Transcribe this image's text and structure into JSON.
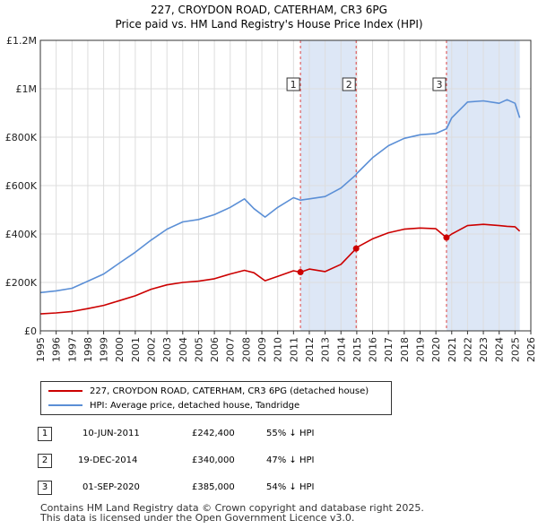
{
  "title": "227, CROYDON ROAD, CATERHAM, CR3 6PG",
  "subtitle": "Price paid vs. HM Land Registry's House Price Index (HPI)",
  "colors": {
    "price_paid": "#cc0000",
    "hpi": "#5b8fd6",
    "shade": "#dde7f6",
    "grid": "#dddddd"
  },
  "chart_data": {
    "type": "line",
    "title": "227, CROYDON ROAD, CATERHAM, CR3 6PG",
    "subtitle": "Price paid vs. HM Land Registry's House Price Index (HPI)",
    "xlim": [
      1995,
      2026
    ],
    "ylim": [
      0,
      1200000
    ],
    "x_ticks": [
      "1995",
      "1996",
      "1997",
      "1998",
      "1999",
      "2000",
      "2001",
      "2002",
      "2003",
      "2004",
      "2005",
      "2006",
      "2007",
      "2008",
      "2009",
      "2010",
      "2011",
      "2012",
      "2013",
      "2014",
      "2015",
      "2016",
      "2017",
      "2018",
      "2019",
      "2020",
      "2021",
      "2022",
      "2023",
      "2024",
      "2025",
      "2026"
    ],
    "y_ticks": [
      {
        "value": 0,
        "label": "£0"
      },
      {
        "value": 200000,
        "label": "£200K"
      },
      {
        "value": 400000,
        "label": "£400K"
      },
      {
        "value": 600000,
        "label": "£600K"
      },
      {
        "value": 800000,
        "label": "£800K"
      },
      {
        "value": 1000000,
        "label": "£1M"
      },
      {
        "value": 1200000,
        "label": "£1.2M"
      }
    ],
    "grid": true,
    "legend_position": "bottom",
    "series": [
      {
        "name": "227, CROYDON ROAD, CATERHAM, CR3 6PG (detached house)",
        "color": "#cc0000",
        "x": [
          1995.0,
          1996.0,
          1997.0,
          1998.0,
          1999.0,
          2000.0,
          2001.0,
          2002.0,
          2003.0,
          2004.0,
          2005.0,
          2006.0,
          2007.0,
          2007.9,
          2008.5,
          2009.2,
          2010.0,
          2011.0,
          2011.44,
          2012.0,
          2013.0,
          2014.0,
          2014.96,
          2015.0,
          2016.0,
          2017.0,
          2018.0,
          2019.0,
          2020.0,
          2020.67,
          2021.0,
          2022.0,
          2023.0,
          2024.0,
          2024.5,
          2025.0,
          2025.3
        ],
        "y": [
          70000,
          74000,
          80000,
          92000,
          105000,
          125000,
          145000,
          172000,
          190000,
          200000,
          205000,
          215000,
          235000,
          250000,
          240000,
          207000,
          225000,
          248000,
          242400,
          255000,
          245000,
          275000,
          340000,
          345000,
          380000,
          405000,
          420000,
          425000,
          422000,
          385000,
          400000,
          435000,
          440000,
          435000,
          432000,
          430000,
          412000
        ]
      },
      {
        "name": "HPI: Average price, detached house, Tandridge",
        "color": "#5b8fd6",
        "x": [
          1995.0,
          1996.0,
          1997.0,
          1998.0,
          1999.0,
          2000.0,
          2001.0,
          2002.0,
          2003.0,
          2004.0,
          2005.0,
          2006.0,
          2007.0,
          2007.9,
          2008.5,
          2009.2,
          2010.0,
          2011.0,
          2011.44,
          2012.0,
          2013.0,
          2014.0,
          2014.96,
          2015.0,
          2016.0,
          2017.0,
          2018.0,
          2019.0,
          2020.0,
          2020.67,
          2021.0,
          2022.0,
          2023.0,
          2024.0,
          2024.5,
          2025.0,
          2025.3
        ],
        "y": [
          158000,
          165000,
          176000,
          205000,
          235000,
          280000,
          325000,
          375000,
          420000,
          450000,
          460000,
          480000,
          510000,
          545000,
          505000,
          470000,
          510000,
          550000,
          540000,
          545000,
          555000,
          590000,
          645000,
          650000,
          715000,
          765000,
          795000,
          810000,
          815000,
          835000,
          880000,
          945000,
          950000,
          940000,
          955000,
          940000,
          880000
        ]
      }
    ],
    "sales": [
      {
        "label": "1",
        "date": "10-JUN-2011",
        "x": 2011.44,
        "price": 242400
      },
      {
        "label": "2",
        "date": "19-DEC-2014",
        "x": 2014.96,
        "price": 340000
      },
      {
        "label": "3",
        "date": "01-SEP-2020",
        "x": 2020.67,
        "price": 385000
      }
    ],
    "shaded_periods": [
      [
        2011.44,
        2014.96
      ],
      [
        2020.67,
        2025.3
      ]
    ]
  },
  "legend": {
    "price_label": "227, CROYDON ROAD, CATERHAM, CR3 6PG (detached house)",
    "hpi_label": "HPI: Average price, detached house, Tandridge"
  },
  "sales_table": [
    {
      "num": "1",
      "date": "10-JUN-2011",
      "price": "£242,400",
      "hpi": "55% ↓ HPI"
    },
    {
      "num": "2",
      "date": "19-DEC-2014",
      "price": "£340,000",
      "hpi": "47% ↓ HPI"
    },
    {
      "num": "3",
      "date": "01-SEP-2020",
      "price": "£385,000",
      "hpi": "54% ↓ HPI"
    }
  ],
  "footer": {
    "line1": "Contains HM Land Registry data © Crown copyright and database right 2025.",
    "line2": "This data is licensed under the Open Government Licence v3.0."
  }
}
